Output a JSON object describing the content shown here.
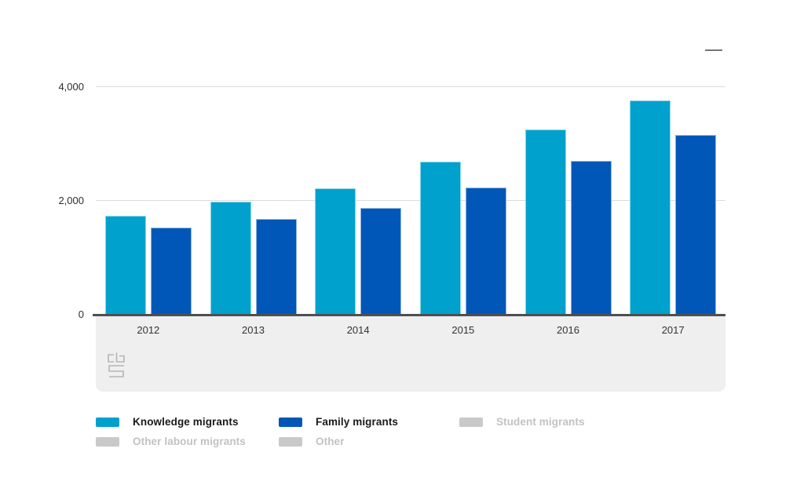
{
  "chart_data": {
    "type": "bar",
    "title": "",
    "xlabel": "",
    "ylabel": "",
    "categories": [
      "2012",
      "2013",
      "2014",
      "2015",
      "2016",
      "2017"
    ],
    "series": [
      {
        "name": "Knowledge migrants",
        "color": "#00a1cd",
        "enabled": true,
        "values": [
          1740,
          1980,
          2220,
          2690,
          3250,
          3760
        ]
      },
      {
        "name": "Family migrants",
        "color": "#0057b8",
        "enabled": true,
        "values": [
          1530,
          1680,
          1870,
          2230,
          2700,
          3150
        ]
      },
      {
        "name": "Student migrants",
        "color": "#c9c9c9",
        "enabled": false,
        "values": null
      },
      {
        "name": "Other labour migrants",
        "color": "#c9c9c9",
        "enabled": false,
        "values": null
      },
      {
        "name": "Other",
        "color": "#c9c9c9",
        "enabled": false,
        "values": null
      }
    ],
    "ylim": [
      0,
      4000
    ],
    "yticks": [
      {
        "value": 0,
        "label": "0"
      },
      {
        "value": 2000,
        "label": "2,000"
      },
      {
        "value": 4000,
        "label": "4,000"
      }
    ],
    "grid": true,
    "legend_position": "bottom"
  },
  "legend": {
    "rows": [
      [
        {
          "label": "Knowledge migrants",
          "color": "#00a1cd",
          "enabled": true,
          "col": 0
        },
        {
          "label": "Family migrants",
          "color": "#0057b8",
          "enabled": true,
          "col": 1
        },
        {
          "label": "Student migrants",
          "color": "#c9c9c9",
          "enabled": false,
          "col": 2
        }
      ],
      [
        {
          "label": "Other labour migrants",
          "color": "#c9c9c9",
          "enabled": false,
          "col": 0
        },
        {
          "label": "Other",
          "color": "#c9c9c9",
          "enabled": false,
          "col": 1
        }
      ]
    ]
  },
  "icons": {
    "chart_menu_dash": "minimize-dash",
    "cbs_logo": "cbs-statistics-netherlands-logo"
  },
  "colors": {
    "knowledge_migrants": "#00a1cd",
    "family_migrants": "#0057b8",
    "disabled_gray": "#c9c9c9",
    "grid_line": "#dcdcdc",
    "axis_line": "#4f4f4f",
    "footer_band": "#efefef",
    "axis_text": "#2d2d2d",
    "disabled_text": "#c2c2c2"
  }
}
